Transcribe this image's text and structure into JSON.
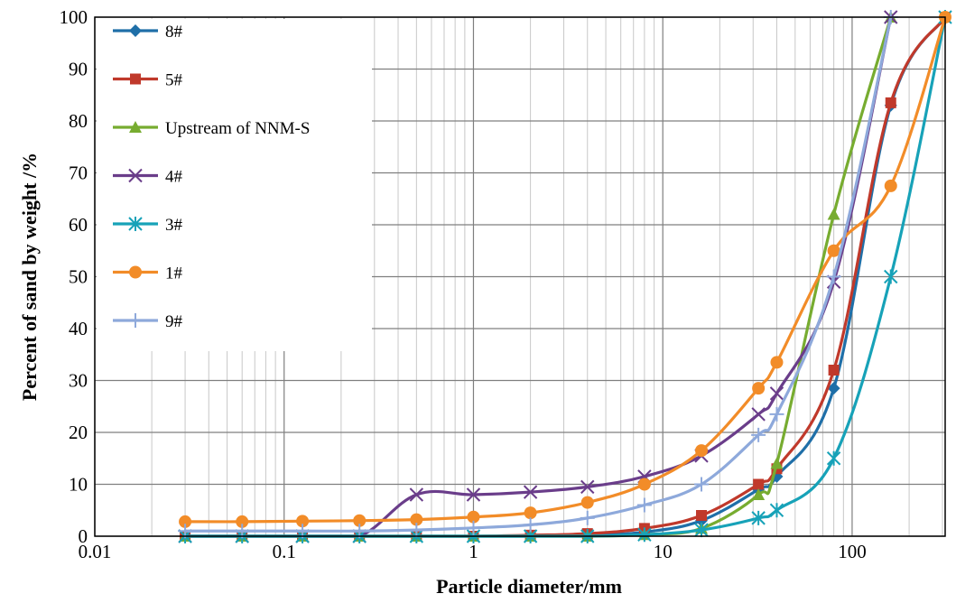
{
  "chart_data": {
    "type": "line",
    "title": "",
    "xlabel": "Particle diameter/mm",
    "ylabel": "Percent of sand by weight /%",
    "x_scale": "log",
    "xlim": [
      0.01,
      310
    ],
    "ylim": [
      0,
      100
    ],
    "x_tick_labels": [
      "0.01",
      "0.1",
      "1",
      "10",
      "100"
    ],
    "y_tick_labels": [
      "0",
      "10",
      "20",
      "30",
      "40",
      "50",
      "60",
      "70",
      "80",
      "90",
      "100"
    ],
    "grid": true,
    "legend_position": "top-left",
    "series": [
      {
        "name": "8#",
        "color": "#1F6FA8",
        "marker": "diamond",
        "x": [
          0.03,
          0.06,
          0.125,
          0.25,
          0.5,
          1,
          2,
          4,
          8,
          16,
          32,
          40,
          80,
          160,
          310
        ],
        "y": [
          0,
          0,
          0,
          0,
          0,
          0,
          0,
          0.2,
          0.8,
          3,
          9,
          11.5,
          28.5,
          83,
          100
        ]
      },
      {
        "name": "5#",
        "color": "#C0392B",
        "marker": "square",
        "x": [
          0.03,
          0.06,
          0.125,
          0.25,
          0.5,
          1,
          2,
          4,
          8,
          16,
          32,
          40,
          80,
          160,
          310
        ],
        "y": [
          0,
          0,
          0,
          0,
          0,
          0,
          0.2,
          0.5,
          1.5,
          4,
          10,
          13,
          32,
          83.5,
          100
        ]
      },
      {
        "name": "Upstream of NNM-S",
        "color": "#77AC30",
        "marker": "triangle",
        "x": [
          0.03,
          0.06,
          0.125,
          0.25,
          0.5,
          1,
          2,
          4,
          8,
          16,
          32,
          40,
          80,
          160
        ],
        "y": [
          0,
          0,
          0,
          0,
          0,
          0,
          0,
          0,
          0.3,
          1.5,
          8,
          14,
          62,
          100
        ]
      },
      {
        "name": "4#",
        "color": "#6A3D8A",
        "marker": "x",
        "x": [
          0.03,
          0.06,
          0.125,
          0.25,
          0.5,
          1,
          2,
          4,
          8,
          16,
          32,
          40,
          80,
          160
        ],
        "y": [
          0,
          0,
          0,
          0,
          8,
          8,
          8.5,
          9.5,
          11.5,
          15.5,
          23.5,
          27.5,
          49,
          100
        ]
      },
      {
        "name": "3#",
        "color": "#17A2B8",
        "marker": "star",
        "x": [
          0.03,
          0.06,
          0.125,
          0.25,
          0.5,
          1,
          2,
          4,
          8,
          16,
          32,
          40,
          80,
          160,
          310
        ],
        "y": [
          0,
          0,
          0,
          0,
          0,
          0,
          0,
          0,
          0.3,
          1.2,
          3.5,
          5,
          15,
          50,
          100
        ]
      },
      {
        "name": "1#",
        "color": "#F28C28",
        "marker": "circle",
        "x": [
          0.03,
          0.06,
          0.125,
          0.25,
          0.5,
          1,
          2,
          4,
          8,
          16,
          32,
          40,
          80,
          160,
          310
        ],
        "y": [
          2.8,
          2.8,
          2.9,
          3,
          3.2,
          3.7,
          4.5,
          6.5,
          10,
          16.5,
          28.5,
          33.5,
          55,
          67.5,
          100
        ]
      },
      {
        "name": "9#",
        "color": "#8EA9DB",
        "marker": "plus",
        "x": [
          0.03,
          0.06,
          0.125,
          0.25,
          0.5,
          1,
          2,
          4,
          8,
          16,
          32,
          40,
          80,
          160
        ],
        "y": [
          1,
          1,
          1,
          1,
          1.2,
          1.6,
          2.2,
          3.5,
          6,
          10,
          19.5,
          23.5,
          50,
          100
        ]
      }
    ]
  }
}
